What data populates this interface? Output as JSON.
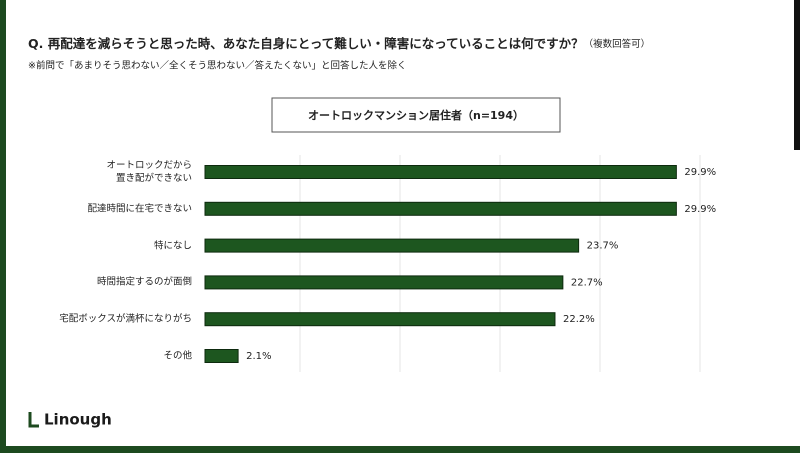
{
  "chart_data": {
    "type": "bar",
    "orientation": "horizontal",
    "title": "Q. 再配達を減らそうと思った時、あなた自身にとって難しい・障害になっていることは何ですか？",
    "title_note": "（複数回答可）",
    "subtitle": "※前問で「あまりそう思わない／全くそう思わない／答えたくない」と回答した人を除く",
    "group_label": "オートロックマンション居住者（n=194）",
    "categories": [
      "オートロックだから\n置き配ができない",
      "配達時間に在宅できない",
      "特になし",
      "時間指定するのが面倒",
      "宅配ボックスが満杯になりがち",
      "その他"
    ],
    "values": [
      29.9,
      29.9,
      23.7,
      22.7,
      22.2,
      2.1
    ],
    "value_labels": [
      "29.9%",
      "29.9%",
      "23.7%",
      "22.7%",
      "22.2%",
      "2.1%"
    ],
    "color": "#1d561f",
    "xlim": [
      0,
      34
    ]
  },
  "brand": "Linough"
}
